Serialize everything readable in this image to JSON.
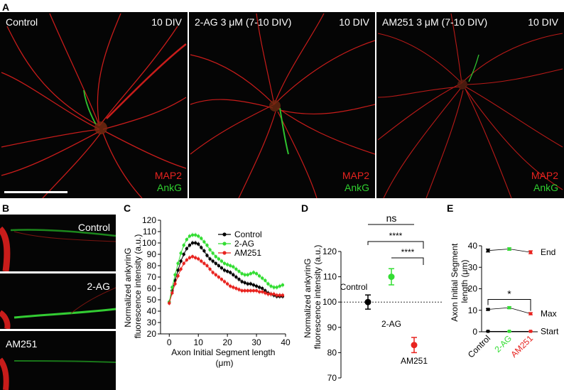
{
  "figure": {
    "panel_a": {
      "letter": "A",
      "images": [
        {
          "condition": "Control",
          "div": "10 DIV"
        },
        {
          "condition": "2-AG 3 μM (7-10 DIV)",
          "div": "10 DIV"
        },
        {
          "condition": "AM251 3 μM (7-10 DIV)",
          "div": "10 DIV"
        }
      ],
      "marker_red": "MAP2",
      "marker_green": "AnkG"
    },
    "panel_b": {
      "letter": "B",
      "images": [
        "Control",
        "2-AG",
        "AM251"
      ]
    },
    "panel_c": {
      "letter": "C"
    },
    "panel_d": {
      "letter": "D"
    },
    "panel_e": {
      "letter": "E"
    },
    "colors": {
      "control": "#000000",
      "two_ag": "#33dd33",
      "am251": "#e8231f",
      "map2": "#e8231f",
      "ankg": "#2fd12f"
    }
  },
  "chart_data": [
    {
      "id": "C",
      "type": "line",
      "ylabel": "Normalized ankyrinG\nfluorescence intensity (a.u.)",
      "xlabel": "Axon Initial Segment length\n(μm)",
      "xlim": [
        -3,
        40
      ],
      "ylim": [
        20,
        120
      ],
      "xticks": [
        0,
        10,
        20,
        30,
        40
      ],
      "yticks": [
        20,
        30,
        40,
        50,
        60,
        70,
        80,
        90,
        100,
        110,
        120
      ],
      "legend_position": "top-right",
      "x": [
        0,
        1,
        2,
        3,
        4,
        5,
        6,
        7,
        8,
        9,
        10,
        11,
        12,
        13,
        14,
        15,
        16,
        17,
        18,
        19,
        20,
        21,
        22,
        23,
        24,
        25,
        26,
        27,
        28,
        29,
        30,
        31,
        32,
        33,
        34,
        35,
        36,
        37,
        38,
        39
      ],
      "series": [
        {
          "name": "Control",
          "color": "#000000",
          "values": [
            48,
            58,
            67,
            76,
            84,
            90,
            95,
            98,
            100,
            100,
            99,
            96,
            93,
            89,
            86,
            84,
            82,
            80,
            78,
            76,
            75,
            74,
            72,
            70,
            68,
            66,
            65,
            64,
            64,
            63,
            62,
            61,
            60,
            58,
            56,
            55,
            54,
            53,
            53,
            53
          ]
        },
        {
          "name": "2-AG",
          "color": "#33dd33",
          "values": [
            48,
            61,
            72,
            82,
            91,
            98,
            103,
            106,
            107,
            107,
            106,
            104,
            101,
            98,
            94,
            91,
            88,
            86,
            84,
            82,
            81,
            80,
            79,
            77,
            75,
            73,
            72,
            72,
            73,
            74,
            73,
            71,
            69,
            67,
            64,
            62,
            61,
            61,
            62,
            63
          ]
        },
        {
          "name": "AM251",
          "color": "#e8231f",
          "values": [
            47,
            56,
            64,
            71,
            77,
            82,
            85,
            87,
            88,
            87,
            86,
            84,
            82,
            80,
            77,
            74,
            72,
            70,
            68,
            66,
            64,
            62,
            61,
            60,
            59,
            58,
            58,
            58,
            58,
            58,
            58,
            57,
            57,
            56,
            55,
            55,
            55,
            54,
            54,
            54
          ]
        }
      ]
    },
    {
      "id": "D",
      "type": "scatter",
      "ylabel": "Normalized ankyrinG\nfluorescence intensity (a.u.)",
      "ylim": [
        70,
        120
      ],
      "yticks": [
        70,
        80,
        90,
        100,
        110,
        120
      ],
      "reference_line": 100,
      "points": [
        {
          "name": "Control",
          "value": 100,
          "error": 2.8,
          "color": "#000000"
        },
        {
          "name": "2-AG",
          "value": 110,
          "error": 3.2,
          "color": "#33dd33"
        },
        {
          "name": "AM251",
          "value": 83,
          "error": 3.0,
          "color": "#e8231f"
        }
      ],
      "significance": [
        {
          "between": [
            "Control",
            "2-AG"
          ],
          "label": "ns"
        },
        {
          "between": [
            "Control",
            "AM251"
          ],
          "label": "****"
        },
        {
          "between": [
            "2-AG",
            "AM251"
          ],
          "label": "****"
        }
      ]
    },
    {
      "id": "E",
      "type": "line",
      "ylabel": "Axon Initial Segment\nlength (μm)",
      "ylim": [
        0,
        40
      ],
      "yticks": [
        0,
        10,
        20,
        30,
        40
      ],
      "categories": [
        "Control",
        "2-AG",
        "AM251"
      ],
      "category_colors": [
        "#000000",
        "#33dd33",
        "#e8231f"
      ],
      "series": [
        {
          "name": "End",
          "values": [
            37.8,
            38.5,
            37.0
          ],
          "errors": [
            0.7,
            0.6,
            0.7
          ]
        },
        {
          "name": "Max",
          "values": [
            10.4,
            11.2,
            8.4
          ],
          "errors": [
            0.4,
            0.5,
            0.5
          ]
        },
        {
          "name": "Start",
          "values": [
            0.2,
            0.2,
            0.2
          ],
          "errors": [
            0.1,
            0.1,
            0.1
          ]
        }
      ],
      "significance": [
        {
          "between": [
            "Control",
            "AM251"
          ],
          "series": "Max",
          "label": "*"
        }
      ]
    }
  ]
}
